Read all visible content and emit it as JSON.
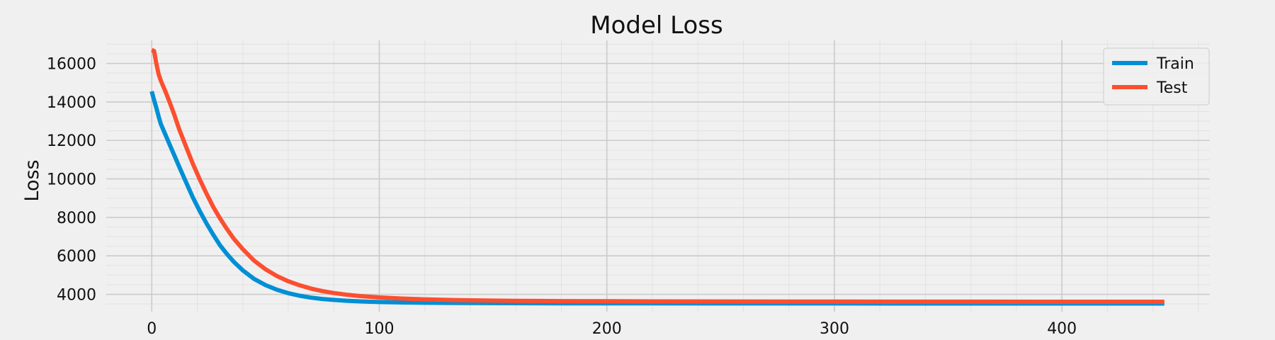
{
  "chart_data": {
    "type": "line",
    "title": "Model Loss",
    "xlabel": "",
    "ylabel": "Loss",
    "xlim": [
      -20,
      465
    ],
    "ylim": [
      3100,
      17200
    ],
    "x_ticks": [
      0,
      100,
      200,
      300,
      400
    ],
    "y_ticks": [
      4000,
      6000,
      8000,
      10000,
      12000,
      14000,
      16000
    ],
    "grid": true,
    "legend_position": "top-right",
    "colors": {
      "background": "#f0f0f0",
      "grid_major": "#cbcbcb",
      "grid_minor": "#e2e2e2",
      "train": "#008fd5",
      "test": "#fc4f30"
    },
    "series": [
      {
        "name": "Train",
        "x": [
          0,
          1,
          2,
          3,
          4,
          6,
          8,
          10,
          12,
          15,
          18,
          21,
          24,
          27,
          30,
          33,
          36,
          40,
          45,
          50,
          55,
          60,
          65,
          70,
          75,
          80,
          85,
          90,
          95,
          100,
          110,
          120,
          130,
          140,
          150,
          160,
          180,
          200,
          220,
          250,
          280,
          300,
          330,
          360,
          390,
          420,
          445
        ],
        "values": [
          14550,
          14100,
          13700,
          13250,
          12850,
          12300,
          11750,
          11200,
          10650,
          9850,
          9050,
          8350,
          7700,
          7100,
          6550,
          6100,
          5700,
          5250,
          4800,
          4480,
          4240,
          4060,
          3930,
          3830,
          3760,
          3710,
          3670,
          3640,
          3620,
          3600,
          3580,
          3565,
          3555,
          3550,
          3545,
          3540,
          3535,
          3532,
          3530,
          3528,
          3527,
          3526,
          3525,
          3525,
          3525,
          3525,
          3525
        ]
      },
      {
        "name": "Test",
        "x": [
          0,
          1,
          2,
          3,
          4,
          6,
          8,
          10,
          12,
          15,
          18,
          21,
          24,
          27,
          30,
          33,
          36,
          40,
          45,
          50,
          55,
          60,
          65,
          70,
          75,
          80,
          85,
          90,
          95,
          100,
          110,
          120,
          130,
          140,
          150,
          160,
          180,
          200,
          220,
          250,
          280,
          300,
          330,
          360,
          390,
          420,
          445
        ],
        "values": [
          16700,
          16650,
          16000,
          15450,
          15100,
          14550,
          13950,
          13300,
          12600,
          11700,
          10800,
          10000,
          9250,
          8550,
          7950,
          7400,
          6900,
          6350,
          5750,
          5300,
          4950,
          4680,
          4470,
          4300,
          4170,
          4070,
          3990,
          3930,
          3880,
          3840,
          3780,
          3740,
          3710,
          3690,
          3675,
          3665,
          3650,
          3640,
          3635,
          3630,
          3625,
          3622,
          3620,
          3618,
          3617,
          3616,
          3615
        ]
      }
    ]
  }
}
